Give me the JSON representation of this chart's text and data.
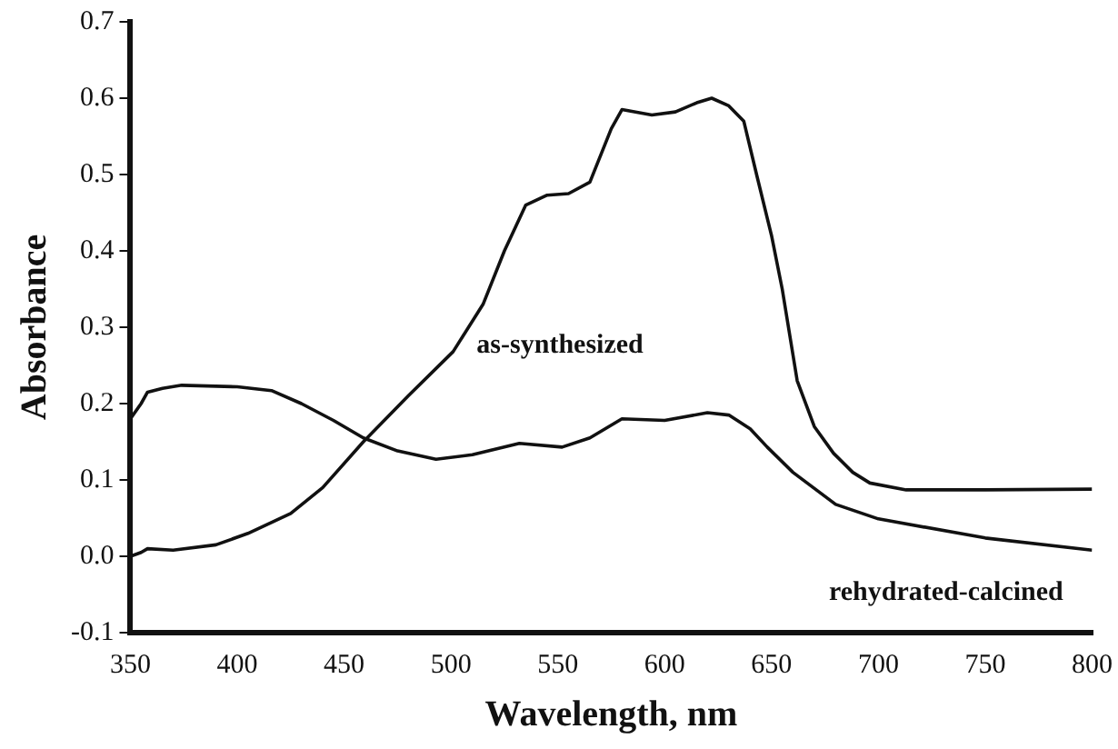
{
  "chart_data": {
    "type": "line",
    "xlabel": "Wavelength, nm",
    "ylabel": "Absorbance",
    "xlim": [
      350,
      800
    ],
    "xticks": [
      350,
      400,
      450,
      500,
      550,
      600,
      650,
      700,
      750,
      800
    ],
    "ylim": [
      -0.1,
      0.7
    ],
    "yticks": [
      -0.1,
      {
        "value": 0,
        "label": "0.0"
      },
      0.1,
      0.2,
      0.3,
      0.4,
      0.5,
      0.6,
      0.7
    ],
    "grid": false,
    "legend": false,
    "marker": "none",
    "line_style": "solid",
    "series": [
      {
        "name": "as-synthesized",
        "color": "#111111",
        "x": [
          350,
          355,
          358,
          370,
          390,
          405,
          425,
          440,
          459,
          480,
          501,
          515,
          525,
          535,
          545,
          555,
          565,
          575,
          580,
          594,
          605,
          615,
          622,
          630,
          637,
          643,
          650,
          655,
          662,
          670,
          679,
          688,
          696,
          713,
          750,
          800
        ],
        "values": [
          0.0,
          0.005,
          0.01,
          0.008,
          0.015,
          0.03,
          0.056,
          0.09,
          0.15,
          0.21,
          0.268,
          0.33,
          0.4,
          0.46,
          0.473,
          0.475,
          0.49,
          0.56,
          0.585,
          0.578,
          0.582,
          0.594,
          0.6,
          0.59,
          0.57,
          0.5,
          0.42,
          0.35,
          0.23,
          0.17,
          0.135,
          0.11,
          0.096,
          0.087,
          0.087,
          0.088
        ]
      },
      {
        "name": "rehydrated-calcined",
        "color": "#111111",
        "x": [
          350,
          355,
          358,
          365,
          374,
          400,
          416,
          430,
          445,
          459,
          475,
          493,
          510,
          532,
          552,
          565,
          580,
          600,
          620,
          630,
          640,
          648,
          660,
          680,
          700,
          750,
          800
        ],
        "values": [
          0.18,
          0.2,
          0.215,
          0.22,
          0.224,
          0.222,
          0.217,
          0.2,
          0.178,
          0.155,
          0.138,
          0.127,
          0.133,
          0.148,
          0.143,
          0.155,
          0.18,
          0.178,
          0.188,
          0.185,
          0.167,
          0.143,
          0.11,
          0.068,
          0.049,
          0.024,
          0.008
        ]
      }
    ]
  }
}
